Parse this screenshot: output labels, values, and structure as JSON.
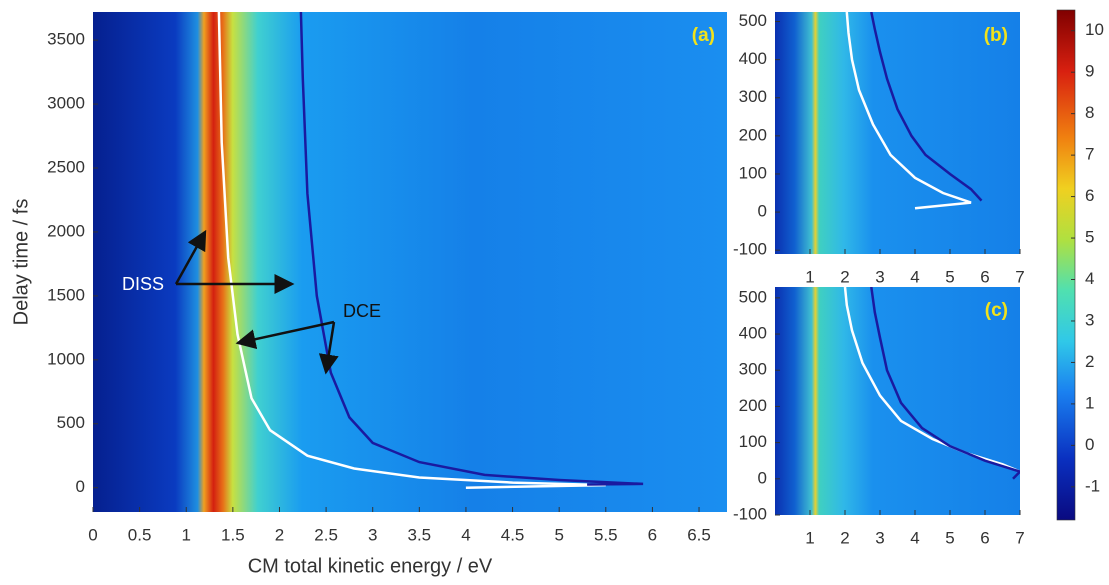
{
  "chart_data": [
    {
      "type": "heatmap",
      "panel_label": "(a)",
      "xlabel": "CM total kinetic energy / eV",
      "ylabel": "Delay time / fs",
      "xlim": [
        0,
        6.8
      ],
      "ylim": [
        -190,
        3720
      ],
      "xticks": [
        0,
        0.5,
        1,
        1.5,
        2,
        2.5,
        3,
        3.5,
        4,
        4.5,
        5,
        5.5,
        6,
        6.5
      ],
      "yticks": [
        0,
        500,
        1000,
        1500,
        2000,
        2500,
        3000,
        3500
      ],
      "annotations": [
        "DISS",
        "DCE"
      ],
      "series": [
        {
          "color": "#ffffff",
          "x": [
            4.0,
            5.5,
            4.5,
            3.5,
            2.8,
            2.3,
            1.9,
            1.7,
            1.55,
            1.45,
            1.38,
            1.35
          ],
          "values": [
            0,
            20,
            40,
            80,
            150,
            250,
            450,
            700,
            1200,
            1800,
            2700,
            3720
          ]
        },
        {
          "color": "#1a1aa0",
          "x": [
            5.3,
            5.9,
            5.0,
            4.2,
            3.5,
            3.0,
            2.75,
            2.55,
            2.4,
            2.3,
            2.25,
            2.23
          ],
          "values": [
            25,
            30,
            60,
            100,
            200,
            350,
            550,
            900,
            1500,
            2300,
            3200,
            3720
          ]
        }
      ]
    },
    {
      "type": "heatmap",
      "panel_label": "(b)",
      "xlim": [
        0,
        7
      ],
      "ylim": [
        -110,
        525
      ],
      "xticks": [
        1,
        2,
        3,
        4,
        5,
        6,
        7
      ],
      "yticks": [
        -100,
        0,
        100,
        200,
        300,
        400,
        500
      ],
      "series": [
        {
          "color": "#ffffff",
          "x": [
            4.0,
            5.6,
            4.8,
            4.0,
            3.3,
            2.8,
            2.4,
            2.2,
            2.1,
            2.05
          ],
          "values": [
            10,
            25,
            50,
            90,
            150,
            230,
            320,
            400,
            470,
            525
          ]
        },
        {
          "color": "#1a1aa0",
          "x": [
            5.9,
            5.6,
            5.0,
            4.3,
            3.9,
            3.5,
            3.2,
            3.0,
            2.85,
            2.75
          ],
          "values": [
            30,
            60,
            100,
            150,
            200,
            270,
            350,
            420,
            480,
            525
          ]
        }
      ]
    },
    {
      "type": "heatmap",
      "panel_label": "(c)",
      "xlim": [
        0,
        7
      ],
      "ylim": [
        -100,
        530
      ],
      "xticks": [
        1,
        2,
        3,
        4,
        5,
        6,
        7
      ],
      "yticks": [
        -100,
        0,
        100,
        200,
        300,
        400,
        500
      ],
      "series": [
        {
          "color": "#ffffff",
          "x": [
            7.0,
            6.5,
            5.5,
            4.5,
            3.6,
            3.0,
            2.5,
            2.2,
            2.05,
            2.0
          ],
          "values": [
            20,
            40,
            70,
            110,
            160,
            230,
            320,
            410,
            480,
            530
          ]
        },
        {
          "color": "#1a1aa0",
          "x": [
            6.8,
            7.0,
            6.0,
            5.0,
            4.2,
            3.6,
            3.2,
            3.0,
            2.85,
            2.75
          ],
          "values": [
            0,
            20,
            50,
            90,
            140,
            210,
            300,
            390,
            460,
            530
          ]
        }
      ]
    },
    {
      "type": "colorbar",
      "ylim": [
        -1.8,
        10.5
      ],
      "yticks": [
        -1,
        0,
        1,
        2,
        3,
        4,
        5,
        6,
        7,
        8,
        9,
        10
      ]
    }
  ]
}
